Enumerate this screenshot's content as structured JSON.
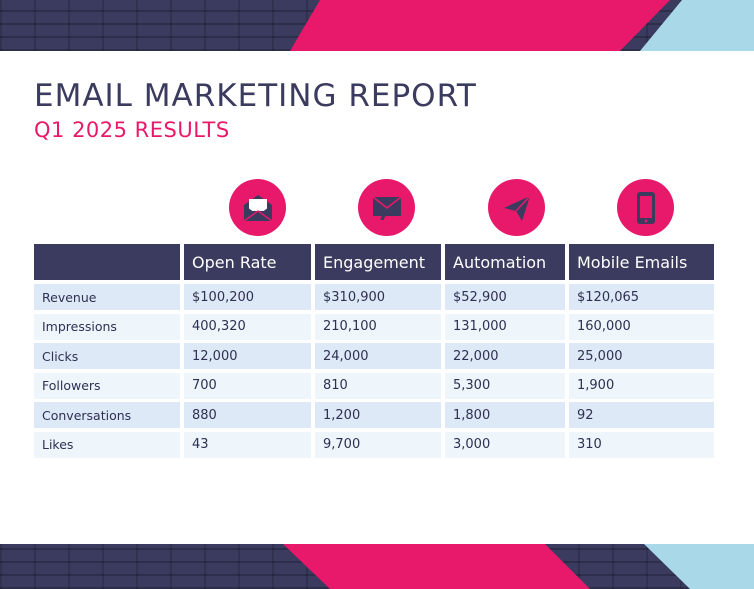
{
  "report": {
    "title": "EMAIL MARKETING REPORT",
    "subtitle": "Q1 2025 RESULTS"
  },
  "colors": {
    "navy": "#3a3b5e",
    "pink": "#e8196a",
    "light_blue": "#a9d8e8",
    "row_blue": "#dde9f7",
    "row_light": "#eef5fb"
  },
  "icons": [
    "open-envelope-icon",
    "envelope-hand-icon",
    "paper-plane-icon",
    "mobile-phone-icon"
  ],
  "table": {
    "headers": [
      "Open Rate",
      "Engagement",
      "Automation",
      "Mobile Emails"
    ],
    "rows": [
      {
        "label": "Revenue",
        "values": [
          "$100,200",
          "$310,900",
          "$52,900",
          "$120,065"
        ]
      },
      {
        "label": "Impressions",
        "values": [
          "400,320",
          "210,100",
          "131,000",
          "160,000"
        ]
      },
      {
        "label": "Clicks",
        "values": [
          "12,000",
          "24,000",
          "22,000",
          "25,000"
        ]
      },
      {
        "label": "Followers",
        "values": [
          "700",
          "810",
          "5,300",
          "1,900"
        ]
      },
      {
        "label": "Conversations",
        "values": [
          "880",
          "1,200",
          "1,800",
          "92"
        ]
      },
      {
        "label": "Likes",
        "values": [
          "43",
          "9,700",
          "3,000",
          "310"
        ]
      }
    ]
  }
}
